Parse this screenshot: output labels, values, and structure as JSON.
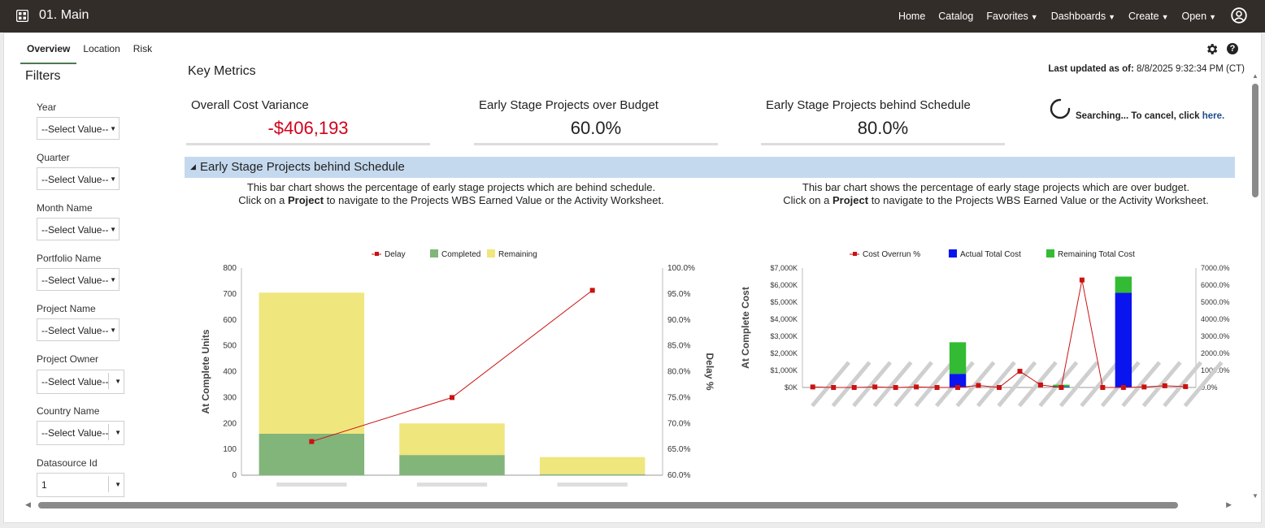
{
  "app": {
    "title": "01. Main"
  },
  "nav": {
    "home": "Home",
    "catalog": "Catalog",
    "favorites": "Favorites",
    "dashboards": "Dashboards",
    "create": "Create",
    "open": "Open"
  },
  "tabs": [
    "Overview",
    "Location",
    "Risk"
  ],
  "filters": {
    "title": "Filters",
    "items": [
      {
        "label": "Year",
        "value": "--Select Value--"
      },
      {
        "label": "Quarter",
        "value": "--Select Value--"
      },
      {
        "label": "Month Name",
        "value": "--Select Value--"
      },
      {
        "label": "Portfolio Name",
        "value": "--Select Value--"
      },
      {
        "label": "Project Name",
        "value": "--Select Value--"
      },
      {
        "label": "Project Owner",
        "value": "--Select Value--"
      },
      {
        "label": "Country Name",
        "value": "--Select Value--"
      },
      {
        "label": "Datasource Id",
        "value": "1"
      }
    ]
  },
  "key_metrics": {
    "title": "Key Metrics",
    "updated_label": "Last updated as of:",
    "updated_value": "8/8/2025 9:32:34 PM (CT)",
    "metrics": [
      {
        "label": "Overall Cost Variance",
        "value": "-$406,193"
      },
      {
        "label": "Early Stage Projects over Budget",
        "value": "60.0%"
      },
      {
        "label": "Early Stage Projects behind Schedule",
        "value": "80.0%"
      }
    ],
    "searching_text": "Searching... To cancel, click",
    "searching_link": "here."
  },
  "section": {
    "title": "Early Stage Projects behind Schedule"
  },
  "left_desc": {
    "line1": "This bar chart shows the percentage of early stage projects which are behind schedule.",
    "line2_pre": "Click on a",
    "line2_bold": "Project",
    "line2_post": "to navigate to the Projects WBS Earned Value or the Activity Worksheet."
  },
  "right_desc": {
    "line1": "This bar chart shows the percentage of early stage projects which are over budget.",
    "line2_pre": "Click on a",
    "line2_bold": "Project",
    "line2_post": "to navigate to the Projects WBS Earned Value or the Activity Worksheet."
  },
  "chart_data": [
    {
      "type": "bar",
      "stacked": true,
      "ylabel": "At Complete Units",
      "y2label": "Delay %",
      "ylim": [
        0,
        800
      ],
      "y2lim": [
        60,
        100
      ],
      "yticks": [
        "0",
        "100",
        "200",
        "300",
        "400",
        "500",
        "600",
        "700",
        "800"
      ],
      "y2ticks": [
        "60.0%",
        "65.0%",
        "70.0%",
        "75.0%",
        "80.0%",
        "85.0%",
        "90.0%",
        "95.0%",
        "100.0%"
      ],
      "legend": [
        "Delay",
        "Completed",
        "Remaining"
      ],
      "legend_position": "top",
      "colors": {
        "delay": "#cc1111",
        "completed": "#82b57a",
        "remaining": "#f0e67e"
      },
      "categories": [
        "",
        "",
        ""
      ],
      "series": [
        {
          "name": "Completed",
          "values": [
            160,
            78,
            4
          ]
        },
        {
          "name": "Remaining",
          "values": [
            545,
            122,
            66
          ]
        }
      ],
      "line": {
        "name": "Delay",
        "values": [
          66.5,
          75.0,
          95.7
        ]
      }
    },
    {
      "type": "bar",
      "stacked": true,
      "ylabel": "At Complete Cost",
      "ylim": [
        0,
        7000
      ],
      "y2lim": [
        0,
        7000
      ],
      "yticks": [
        "$0K",
        "$1,000K",
        "$2,000K",
        "$3,000K",
        "$4,000K",
        "$5,000K",
        "$6,000K",
        "$7,000K"
      ],
      "y2ticks": [
        "0.0%",
        "1000.0%",
        "2000.0%",
        "3000.0%",
        "4000.0%",
        "5000.0%",
        "6000.0%",
        "7000.0%"
      ],
      "legend": [
        "Cost Overrun %",
        "Actual Total Cost",
        "Remaining Total Cost"
      ],
      "legend_position": "top",
      "colors": {
        "overrun": "#cc1111",
        "actual": "#0a14ee",
        "remaining": "#33bb33"
      },
      "categories": [
        "",
        "",
        "",
        "",
        "",
        "",
        "",
        "",
        "",
        "",
        "",
        "",
        "",
        "",
        "",
        "",
        "",
        "",
        ""
      ],
      "series": [
        {
          "name": "Actual Total Cost",
          "values": [
            0,
            0,
            0,
            0,
            0,
            0,
            0,
            800,
            0,
            0,
            0,
            0,
            40,
            0,
            0,
            5550,
            0,
            0,
            0
          ]
        },
        {
          "name": "Remaining Total Cost",
          "values": [
            0,
            0,
            0,
            0,
            0,
            0,
            0,
            1850,
            0,
            0,
            0,
            0,
            120,
            0,
            0,
            950,
            0,
            0,
            0
          ]
        }
      ],
      "line": {
        "name": "Cost Overrun %",
        "values": [
          30,
          0,
          0,
          30,
          0,
          30,
          0,
          0,
          120,
          0,
          950,
          150,
          0,
          6300,
          0,
          0,
          30,
          100,
          50
        ]
      }
    }
  ]
}
